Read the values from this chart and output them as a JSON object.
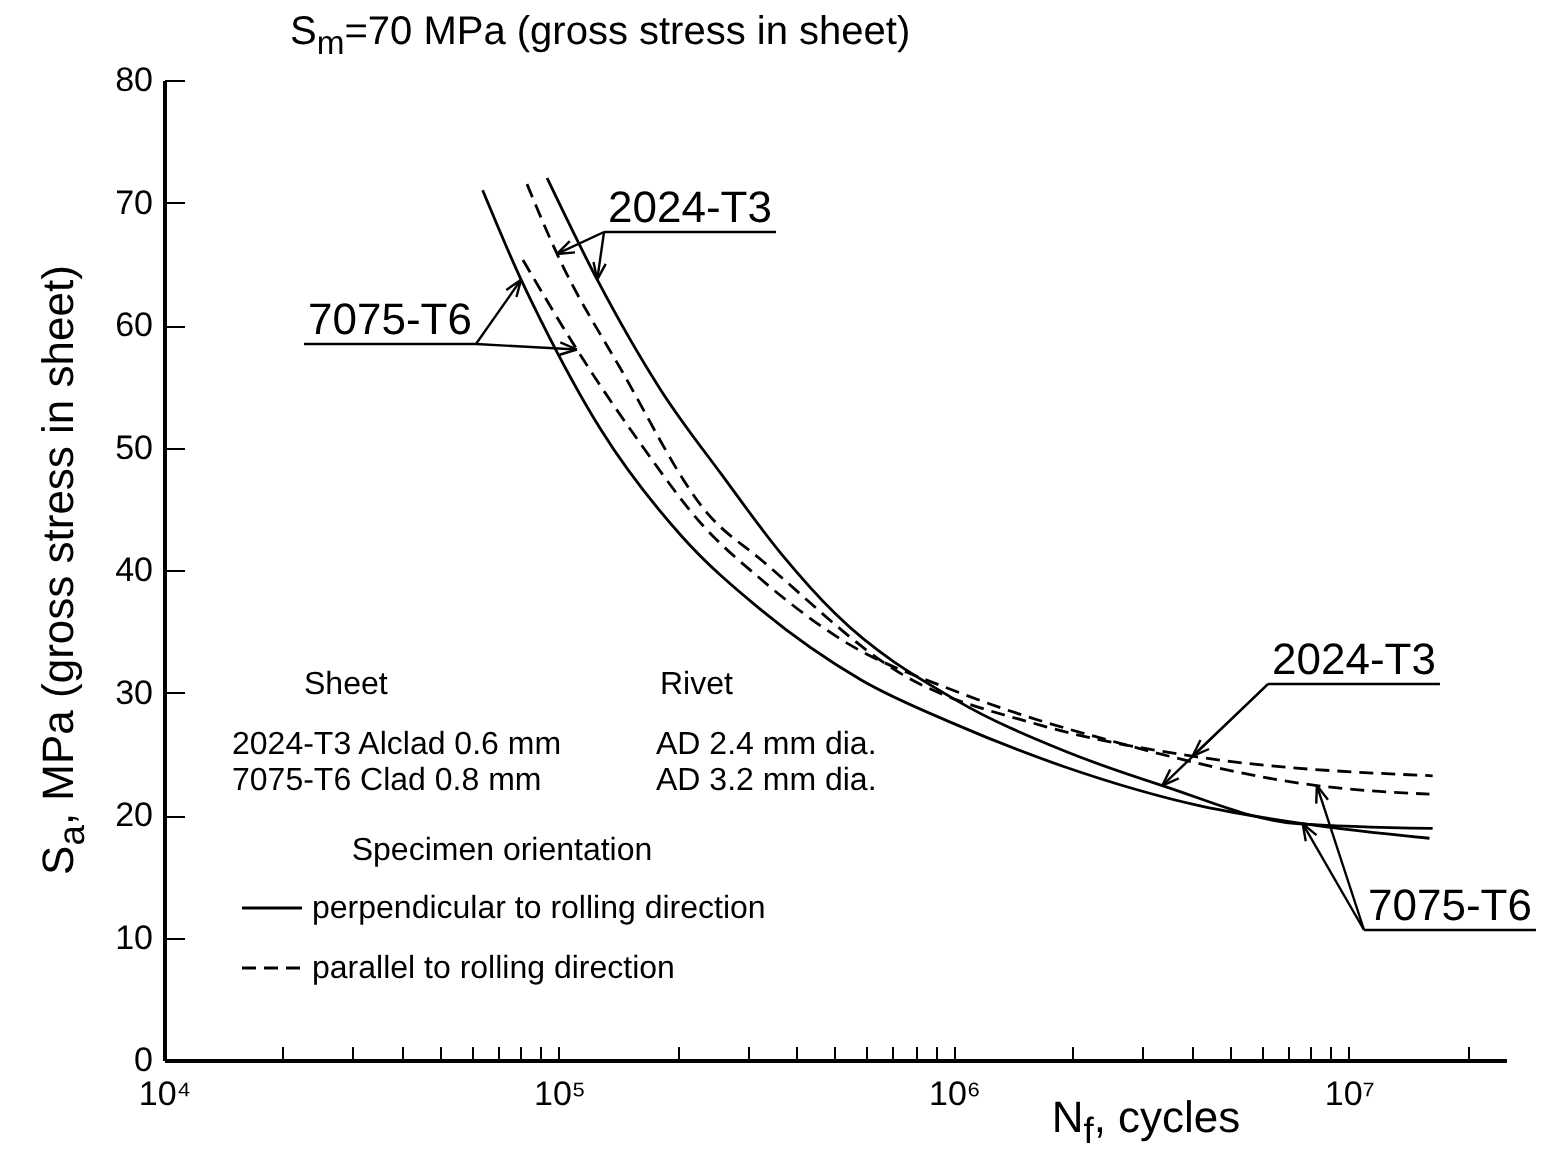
{
  "chart_data": {
    "type": "line",
    "title": "S$_{m}$=70 MPa (gross stress in sheet)",
    "xlabel": "N$_{f}$, cycles",
    "ylabel": "S$_{a}$, MPa (gross stress in sheet)",
    "legend_title": "Specimen orientation",
    "legend": "bottom left",
    "log": "x",
    "xlim": [
      10000,
      25000000
    ],
    "ylim": [
      0,
      80
    ],
    "xticks": [
      {
        "value": 10000,
        "label": "10⁴"
      },
      {
        "value": 20000,
        "label": null
      },
      {
        "value": 30000,
        "label": null
      },
      {
        "value": 40000,
        "label": null
      },
      {
        "value": 50000,
        "label": null
      },
      {
        "value": 60000,
        "label": null
      },
      {
        "value": 70000,
        "label": null
      },
      {
        "value": 80000,
        "label": null
      },
      {
        "value": 90000,
        "label": null
      },
      {
        "value": 100000,
        "label": "10⁵"
      },
      {
        "value": 200000,
        "label": null
      },
      {
        "value": 300000,
        "label": null
      },
      {
        "value": 400000,
        "label": null
      },
      {
        "value": 500000,
        "label": null
      },
      {
        "value": 600000,
        "label": null
      },
      {
        "value": 700000,
        "label": null
      },
      {
        "value": 800000,
        "label": null
      },
      {
        "value": 900000,
        "label": null
      },
      {
        "value": 1000000,
        "label": "10⁶"
      },
      {
        "value": 2000000,
        "label": null
      },
      {
        "value": 3000000,
        "label": null
      },
      {
        "value": 4000000,
        "label": null
      },
      {
        "value": 5000000,
        "label": null
      },
      {
        "value": 6000000,
        "label": null
      },
      {
        "value": 7000000,
        "label": null
      },
      {
        "value": 8000000,
        "label": null
      },
      {
        "value": 9000000,
        "label": null
      },
      {
        "value": 10000000,
        "label": "10⁷"
      },
      {
        "value": 20000000,
        "label": null
      }
    ],
    "yticks": [
      0,
      10,
      20,
      30,
      40,
      50,
      60,
      70,
      80
    ],
    "series": [
      {
        "name": "perpendicular to rolling direction",
        "color": "#000000",
        "line_style": "solid",
        "x": [
          93300,
          125000,
          181000,
          258000,
          366000,
          502000,
          1010000,
          1880000,
          3370000,
          7380000,
          16300000
        ],
        "values": [
          72.0,
          63.7,
          54.7,
          47.8,
          41.3,
          36.4,
          29.4,
          25.3,
          22.4,
          19.3,
          18.9
        ]
      },
      {
        "name": "parallel to rolling direction",
        "color": "#000000",
        "line_style": "dashed",
        "x": [
          83000,
          98900,
          144000,
          238000,
          326000,
          738000,
          1670000,
          4020000,
          16300000
        ],
        "values": [
          71.5,
          65.8,
          56.3,
          44.6,
          40.8,
          31.5,
          27.3,
          24.8,
          23.2
        ]
      },
      {
        "color": "#000000",
        "line_style": "solid",
        "x": [
          64100,
          80200,
          89900,
          128000,
          204000,
          326000,
          584000,
          1010000,
          1880000,
          4260000,
          7640000,
          16000000
        ],
        "values": [
          71.0,
          63.7,
          60.4,
          51.4,
          42.8,
          36.7,
          31.0,
          27.4,
          24.0,
          20.7,
          19.3,
          18.1
        ]
      },
      {
        "color": "#000000",
        "line_style": "dashed",
        "x": [
          81100,
          111000,
          161000,
          229000,
          326000,
          520000,
          1050000,
          2670000,
          8300000,
          16000000
        ],
        "values": [
          65.3,
          58.0,
          50.3,
          43.8,
          39.2,
          34.3,
          29.9,
          25.8,
          22.4,
          21.7
        ]
      }
    ],
    "annotations": [
      {
        "text": "2024-T3",
        "x": 98900,
        "y": 65.8
      },
      {
        "text": "7075-T6",
        "x": 80200,
        "y": 63.7
      },
      {
        "text": "2024-T3",
        "x": 4020000,
        "y": 24.8
      },
      {
        "text": "7075-T6",
        "x": 8300000,
        "y": 22.4
      },
      "Sheet",
      "Rivet",
      "2024-T3 Alclad 0.6 mm",
      "AD 2.4 mm dia.",
      "7075-T6 Clad 0.8 mm",
      "AD 3.2 mm dia."
    ]
  }
}
